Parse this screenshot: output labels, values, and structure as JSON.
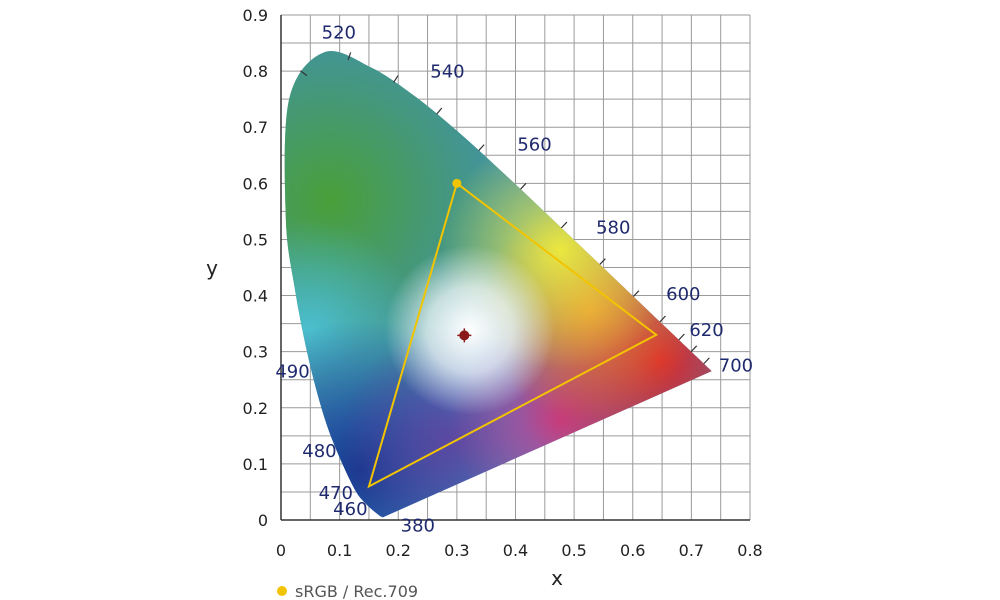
{
  "chart_data": {
    "type": "scatter",
    "title": "",
    "xlabel": "x",
    "ylabel": "y",
    "xlim": [
      0,
      0.8
    ],
    "ylim": [
      0,
      0.9
    ],
    "grid": true,
    "grid_step": 0.05,
    "x_ticks": [
      "0",
      "0.1",
      "0.2",
      "0.3",
      "0.4",
      "0.5",
      "0.6",
      "0.7",
      "0.8"
    ],
    "y_ticks": [
      "0",
      "0.1",
      "0.2",
      "0.3",
      "0.4",
      "0.5",
      "0.6",
      "0.7",
      "0.8",
      "0.9"
    ],
    "spectral_locus": [
      [
        0.1741,
        0.005
      ],
      [
        0.1738,
        0.0049
      ],
      [
        0.1666,
        0.0089
      ],
      [
        0.144,
        0.0297
      ],
      [
        0.1241,
        0.0578
      ],
      [
        0.0913,
        0.1327
      ],
      [
        0.0687,
        0.2007
      ],
      [
        0.0454,
        0.295
      ],
      [
        0.0235,
        0.4127
      ],
      [
        0.0082,
        0.5384
      ],
      [
        0.0139,
        0.7502
      ],
      [
        0.0743,
        0.8338
      ],
      [
        0.1547,
        0.8059
      ],
      [
        0.2296,
        0.7543
      ],
      [
        0.3016,
        0.6923
      ],
      [
        0.3731,
        0.6245
      ],
      [
        0.4441,
        0.5547
      ],
      [
        0.5125,
        0.4866
      ],
      [
        0.5752,
        0.4242
      ],
      [
        0.627,
        0.3725
      ],
      [
        0.6658,
        0.334
      ],
      [
        0.6915,
        0.3083
      ],
      [
        0.7079,
        0.292
      ],
      [
        0.7347,
        0.2653
      ]
    ],
    "wavelength_labels": [
      {
        "text": "380",
        "x": 0.1741,
        "y": 0.005,
        "dx": 0.03,
        "dy": -0.015
      },
      {
        "text": "460",
        "x": 0.144,
        "y": 0.0297,
        "dx": -0.055,
        "dy": -0.01
      },
      {
        "text": "470",
        "x": 0.1241,
        "y": 0.0578,
        "dx": -0.06,
        "dy": -0.01
      },
      {
        "text": "480",
        "x": 0.0913,
        "y": 0.1327,
        "dx": -0.055,
        "dy": -0.01
      },
      {
        "text": "490",
        "x": 0.0454,
        "y": 0.295,
        "dx": -0.055,
        "dy": -0.03
      },
      {
        "text": "520",
        "x": 0.0743,
        "y": 0.8338,
        "dx": -0.005,
        "dy": 0.035
      },
      {
        "text": "540",
        "x": 0.2296,
        "y": 0.7543,
        "dx": 0.025,
        "dy": 0.045
      },
      {
        "text": "560",
        "x": 0.3731,
        "y": 0.6245,
        "dx": 0.03,
        "dy": 0.045
      },
      {
        "text": "580",
        "x": 0.5125,
        "y": 0.4866,
        "dx": 0.025,
        "dy": 0.035
      },
      {
        "text": "600",
        "x": 0.627,
        "y": 0.3725,
        "dx": 0.03,
        "dy": 0.03
      },
      {
        "text": "620",
        "x": 0.6915,
        "y": 0.3083,
        "dx": 0.005,
        "dy": 0.03
      },
      {
        "text": "700",
        "x": 0.7347,
        "y": 0.2653,
        "dx": 0.012,
        "dy": 0.01
      }
    ],
    "series": [
      {
        "name": "sRGB / Rec.709",
        "color": "#f2c400",
        "points": [
          [
            0.64,
            0.33
          ],
          [
            0.3,
            0.6
          ],
          [
            0.15,
            0.06
          ]
        ]
      }
    ],
    "white_point": {
      "x": 0.3127,
      "y": 0.329,
      "color": "#8b1a1a"
    },
    "legend": {
      "position": "bottom-left",
      "marker_color": "#f2c400"
    }
  }
}
